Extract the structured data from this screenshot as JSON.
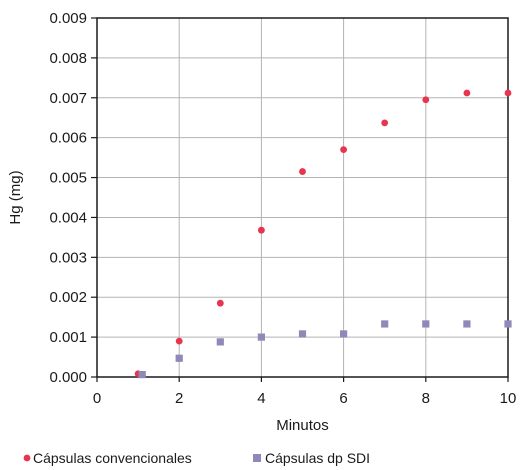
{
  "chart_data": {
    "type": "scatter",
    "xlabel": "Minutos",
    "ylabel": "Hg (mg)",
    "xlim": [
      0,
      10
    ],
    "ylim": [
      0,
      0.009
    ],
    "x_ticks": [
      "0",
      "2",
      "4",
      "6",
      "8",
      "10"
    ],
    "y_ticks": [
      "0.000",
      "0.001",
      "0.002",
      "0.003",
      "0.004",
      "0.005",
      "0.006",
      "0.007",
      "0.008",
      "0.009"
    ],
    "grid": true,
    "legend_position": "bottom",
    "series": [
      {
        "name": "Cápsulas convencionales",
        "marker": "circle",
        "color": "#e8344e",
        "points": [
          {
            "x": 1,
            "y": 8e-05
          },
          {
            "x": 2,
            "y": 0.0009
          },
          {
            "x": 3,
            "y": 0.00185
          },
          {
            "x": 4,
            "y": 0.00368
          },
          {
            "x": 5,
            "y": 0.00515
          },
          {
            "x": 6,
            "y": 0.0057
          },
          {
            "x": 7,
            "y": 0.00637
          },
          {
            "x": 8,
            "y": 0.00695
          },
          {
            "x": 9,
            "y": 0.00712
          },
          {
            "x": 10,
            "y": 0.00712
          }
        ]
      },
      {
        "name": "Cápsulas dp SDI",
        "marker": "square",
        "color": "#9088b8",
        "points": [
          {
            "x": 1.1,
            "y": 6e-05
          },
          {
            "x": 2,
            "y": 0.00047
          },
          {
            "x": 3,
            "y": 0.00088
          },
          {
            "x": 4,
            "y": 0.001
          },
          {
            "x": 5,
            "y": 0.00108
          },
          {
            "x": 6,
            "y": 0.00108
          },
          {
            "x": 7,
            "y": 0.00133
          },
          {
            "x": 8,
            "y": 0.00133
          },
          {
            "x": 9,
            "y": 0.00133
          },
          {
            "x": 10,
            "y": 0.00133
          }
        ]
      }
    ]
  }
}
